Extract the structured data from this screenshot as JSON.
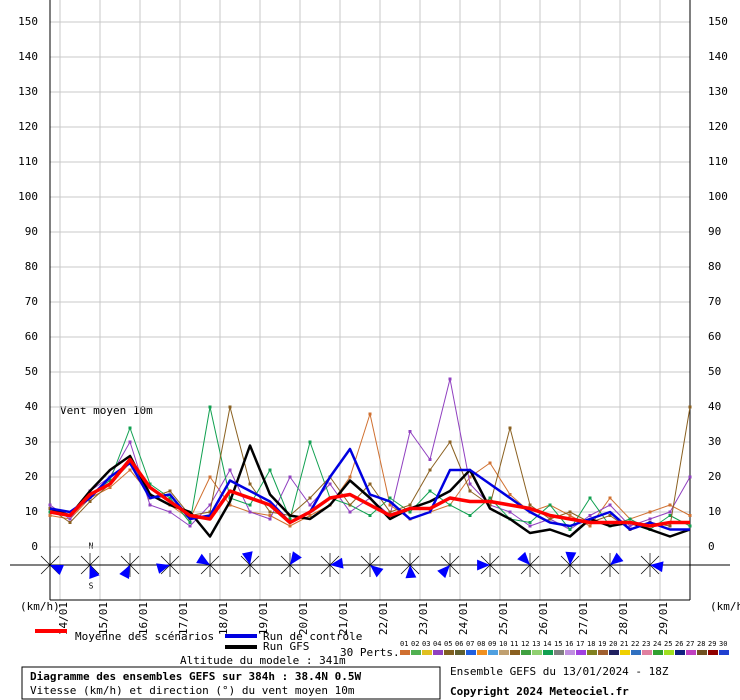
{
  "chart_data": {
    "type": "line",
    "annotation": "Vent moyen 10m",
    "y_unit_left": "(km/h)",
    "y_unit_right": "(km/h)",
    "xlim": [
      0,
      384
    ],
    "ylim": [
      0,
      150
    ],
    "yticks": [
      0,
      10,
      20,
      30,
      40,
      50,
      60,
      70,
      80,
      90,
      100,
      110,
      120,
      130,
      140,
      150
    ],
    "xticks": [
      {
        "value": 6,
        "label": "14/01"
      },
      {
        "value": 30,
        "label": "15/01"
      },
      {
        "value": 54,
        "label": "16/01"
      },
      {
        "value": 78,
        "label": "17/01"
      },
      {
        "value": 102,
        "label": "18/01"
      },
      {
        "value": 126,
        "label": "19/01"
      },
      {
        "value": 150,
        "label": "20/01"
      },
      {
        "value": 174,
        "label": "21/01"
      },
      {
        "value": 198,
        "label": "22/01"
      },
      {
        "value": 222,
        "label": "23/01"
      },
      {
        "value": 246,
        "label": "24/01"
      },
      {
        "value": 270,
        "label": "25/01"
      },
      {
        "value": 294,
        "label": "26/01"
      },
      {
        "value": 318,
        "label": "27/01"
      },
      {
        "value": 342,
        "label": "28/01"
      },
      {
        "value": 366,
        "label": "29/01"
      }
    ],
    "grid": true,
    "x": [
      0,
      12,
      24,
      36,
      48,
      60,
      72,
      84,
      96,
      108,
      120,
      132,
      144,
      156,
      168,
      180,
      192,
      204,
      216,
      228,
      240,
      252,
      264,
      276,
      288,
      300,
      312,
      324,
      336,
      348,
      360,
      372,
      384
    ],
    "series": [
      {
        "name": "01",
        "color": "#d07030",
        "width": 1,
        "values": [
          9,
          8,
          14,
          17,
          22,
          15,
          12,
          8,
          20,
          12,
          10,
          9,
          6,
          9,
          12,
          20,
          38,
          12,
          8,
          10,
          12,
          20,
          24,
          15,
          10,
          12,
          9,
          6,
          14,
          8,
          10,
          12,
          9
        ]
      },
      {
        "name": "04",
        "color": "#9040c0",
        "width": 1,
        "values": [
          12,
          8,
          16,
          20,
          30,
          12,
          10,
          6,
          12,
          22,
          10,
          8,
          20,
          12,
          18,
          10,
          14,
          9,
          33,
          25,
          48,
          18,
          12,
          10,
          6,
          8,
          5,
          9,
          12,
          6,
          8,
          10,
          20
        ]
      },
      {
        "name": "14",
        "color": "#10a050",
        "width": 1,
        "values": [
          10,
          9,
          15,
          19,
          34,
          18,
          14,
          7,
          40,
          14,
          12,
          22,
          8,
          30,
          14,
          12,
          9,
          14,
          10,
          16,
          12,
          9,
          14,
          8,
          7,
          12,
          5,
          14,
          6,
          8,
          5,
          9,
          6
        ]
      },
      {
        "name": "11",
        "color": "#8a6020",
        "width": 1,
        "values": [
          11,
          7,
          13,
          18,
          24,
          14,
          16,
          9,
          10,
          40,
          18,
          10,
          9,
          14,
          20,
          12,
          18,
          10,
          12,
          22,
          30,
          16,
          12,
          34,
          12,
          8,
          10,
          7,
          9,
          5,
          7,
          6,
          40
        ]
      },
      {
        "name": "Run GFS",
        "color": "#000000",
        "width": 2.5,
        "values": [
          11,
          9,
          16,
          22,
          26,
          15,
          12,
          10,
          3,
          13,
          29,
          15,
          9,
          8,
          12,
          19,
          14,
          8,
          11,
          13,
          16,
          22,
          11,
          8,
          4,
          5,
          3,
          8,
          6,
          7,
          5,
          3,
          5
        ]
      },
      {
        "name": "Run de contrôle",
        "color": "#0000e0",
        "width": 2.5,
        "values": [
          11,
          10,
          14,
          20,
          24,
          14,
          15,
          8,
          9,
          19,
          16,
          13,
          7,
          10,
          20,
          28,
          15,
          13,
          8,
          10,
          22,
          22,
          18,
          14,
          10,
          7,
          6,
          8,
          10,
          5,
          7,
          5,
          5
        ]
      },
      {
        "name": "Moyenne des scénarios",
        "color": "#ff0000",
        "width": 3.5,
        "values": [
          10,
          9,
          15,
          18,
          25,
          17,
          13,
          9,
          8,
          16,
          14,
          12,
          7,
          10,
          14,
          15,
          12,
          9,
          11,
          11,
          14,
          13,
          13,
          12,
          11,
          9,
          8,
          7,
          7,
          7,
          6,
          7,
          7
        ]
      }
    ],
    "legend_order": [
      6,
      5,
      4
    ],
    "perturbations_label": "30 Perts.",
    "perturbations": [
      {
        "label": "01",
        "color": "#d07030"
      },
      {
        "label": "02",
        "color": "#50b050"
      },
      {
        "label": "03",
        "color": "#e0c020"
      },
      {
        "label": "04",
        "color": "#9040c0"
      },
      {
        "label": "05",
        "color": "#806020"
      },
      {
        "label": "06",
        "color": "#606030"
      },
      {
        "label": "07",
        "color": "#2060e0"
      },
      {
        "label": "08",
        "color": "#f09020"
      },
      {
        "label": "09",
        "color": "#50a0e0"
      },
      {
        "label": "10",
        "color": "#c0a070"
      },
      {
        "label": "11",
        "color": "#8a6020"
      },
      {
        "label": "12",
        "color": "#40a040"
      },
      {
        "label": "13",
        "color": "#90d070"
      },
      {
        "label": "14",
        "color": "#10a050"
      },
      {
        "label": "15",
        "color": "#808080"
      },
      {
        "label": "16",
        "color": "#c090e0"
      },
      {
        "label": "17",
        "color": "#a040e0"
      },
      {
        "label": "18",
        "color": "#808020"
      },
      {
        "label": "19",
        "color": "#a06030"
      },
      {
        "label": "20",
        "color": "#202060"
      },
      {
        "label": "21",
        "color": "#f0d000"
      },
      {
        "label": "22",
        "color": "#3070c0"
      },
      {
        "label": "23",
        "color": "#e080a0"
      },
      {
        "label": "24",
        "color": "#30a030"
      },
      {
        "label": "25",
        "color": "#a0e020"
      },
      {
        "label": "26",
        "color": "#102080"
      },
      {
        "label": "27",
        "color": "#c040c0"
      },
      {
        "label": "28",
        "color": "#705020"
      },
      {
        "label": "29",
        "color": "#900000"
      },
      {
        "label": "30",
        "color": "#2040d0"
      }
    ],
    "compass": [
      "N",
      "S"
    ],
    "altitude": "Altitude du modele : 341m",
    "footer_title": "Diagramme des ensembles GEFS sur 384h : 38.4N 0.5W",
    "footer_subtitle": "Vitesse (km/h) et direction (°) du vent moyen 10m",
    "run_info": "Ensemble GEFS du 13/01/2024 - 18Z",
    "copyright": "Copyright 2024 Meteociel.fr"
  }
}
